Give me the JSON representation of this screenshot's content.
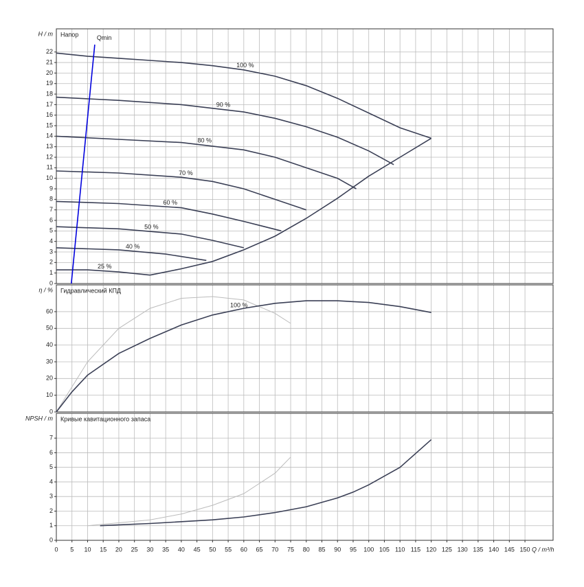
{
  "chart_data": [
    {
      "type": "line",
      "title": "Напор",
      "ylabel": "H / m",
      "ylim": [
        0,
        24.2
      ],
      "yticks": [
        0,
        1,
        2,
        3,
        4,
        5,
        6,
        7,
        8,
        9,
        10,
        11,
        12,
        13,
        14,
        15,
        16,
        17,
        18,
        19,
        20,
        21,
        22
      ],
      "series": [
        {
          "name": "100 %",
          "color": "#3a3f55",
          "x": [
            0,
            10,
            20,
            30,
            40,
            50,
            60,
            70,
            80,
            90,
            100,
            110,
            120
          ],
          "values": [
            21.9,
            21.6,
            21.4,
            21.2,
            21,
            20.7,
            20.3,
            19.7,
            18.8,
            17.6,
            16.2,
            14.8,
            13.8
          ]
        },
        {
          "name": "90 %",
          "color": "#3a3f55",
          "x": [
            0,
            20,
            40,
            60,
            70,
            80,
            90,
            100,
            108
          ],
          "values": [
            17.7,
            17.4,
            17,
            16.3,
            15.7,
            14.9,
            13.9,
            12.6,
            11.3
          ]
        },
        {
          "name": "80 %",
          "color": "#3a3f55",
          "x": [
            0,
            20,
            40,
            60,
            70,
            80,
            90,
            96
          ],
          "values": [
            14,
            13.7,
            13.4,
            12.7,
            12,
            11,
            10,
            9
          ]
        },
        {
          "name": "70 %",
          "color": "#3a3f55",
          "x": [
            0,
            20,
            40,
            50,
            60,
            70,
            80
          ],
          "values": [
            10.7,
            10.5,
            10.1,
            9.7,
            9,
            8,
            7
          ]
        },
        {
          "name": "60 %",
          "color": "#3a3f55",
          "x": [
            0,
            20,
            40,
            50,
            60,
            72
          ],
          "values": [
            7.8,
            7.6,
            7.2,
            6.6,
            5.9,
            5
          ]
        },
        {
          "name": "50 %",
          "color": "#3a3f55",
          "x": [
            0,
            20,
            40,
            50,
            60
          ],
          "values": [
            5.4,
            5.2,
            4.7,
            4.1,
            3.4
          ]
        },
        {
          "name": "40 %",
          "color": "#3a3f55",
          "x": [
            0,
            20,
            35,
            48
          ],
          "values": [
            3.4,
            3.2,
            2.8,
            2.2
          ]
        },
        {
          "name": "25 %",
          "color": "#3a3f55",
          "x": [
            0,
            10,
            20,
            30
          ],
          "values": [
            1.3,
            1.3,
            1.1,
            0.8
          ]
        },
        {
          "color": "#3a3f55",
          "x": [
            30,
            40,
            50,
            60,
            70,
            80,
            90,
            100,
            110,
            120
          ],
          "values": [
            0.8,
            1.4,
            2.1,
            3.2,
            4.5,
            6.2,
            8.1,
            10.2,
            12,
            13.8
          ]
        },
        {
          "name": "Qmin",
          "color": "#0000dd",
          "x": [
            4.8,
            12.3
          ],
          "values": [
            0,
            22.7
          ]
        }
      ]
    },
    {
      "type": "line",
      "title": "Гидравлический КПД",
      "ylabel": "η / %",
      "ylim": [
        0,
        76
      ],
      "yticks": [
        0,
        10,
        20,
        30,
        40,
        50,
        60
      ],
      "series": [
        {
          "color": "#bbbbbb",
          "x": [
            0,
            10,
            20,
            30,
            40,
            50,
            60,
            70,
            75
          ],
          "values": [
            0,
            30,
            50,
            62,
            68,
            69,
            67,
            59,
            53
          ]
        },
        {
          "name": "100 %",
          "color": "#3a3f55",
          "x": [
            0,
            5,
            10,
            20,
            30,
            40,
            50,
            60,
            70,
            80,
            90,
            100,
            110,
            120
          ],
          "values": [
            0,
            12,
            22,
            35,
            44,
            52,
            58,
            62,
            65,
            66.5,
            66.5,
            65.5,
            63,
            59.5
          ]
        }
      ]
    },
    {
      "type": "line",
      "title": "Кривые кавитационного запаса",
      "ylabel": "NPSH / m",
      "xlabel": "Q / m³/h",
      "ylim": [
        0,
        8.7
      ],
      "yticks": [
        0,
        1,
        2,
        3,
        4,
        5,
        6,
        7
      ],
      "xlim": [
        0,
        159
      ],
      "xticks": [
        0,
        5,
        10,
        15,
        20,
        25,
        30,
        35,
        40,
        45,
        50,
        55,
        60,
        65,
        70,
        75,
        80,
        85,
        90,
        95,
        100,
        105,
        110,
        115,
        120,
        125,
        130,
        135,
        140,
        145,
        150
      ],
      "series": [
        {
          "color": "#bbbbbb",
          "x": [
            10,
            20,
            30,
            40,
            50,
            60,
            70,
            75
          ],
          "values": [
            1,
            1.2,
            1.4,
            1.8,
            2.4,
            3.2,
            4.6,
            5.7
          ]
        },
        {
          "color": "#3a3f55",
          "x": [
            14,
            30,
            50,
            60,
            70,
            80,
            90,
            95,
            100,
            110,
            120
          ],
          "values": [
            1,
            1.15,
            1.4,
            1.6,
            1.9,
            2.3,
            2.9,
            3.3,
            3.8,
            5,
            6.9
          ]
        }
      ]
    }
  ]
}
